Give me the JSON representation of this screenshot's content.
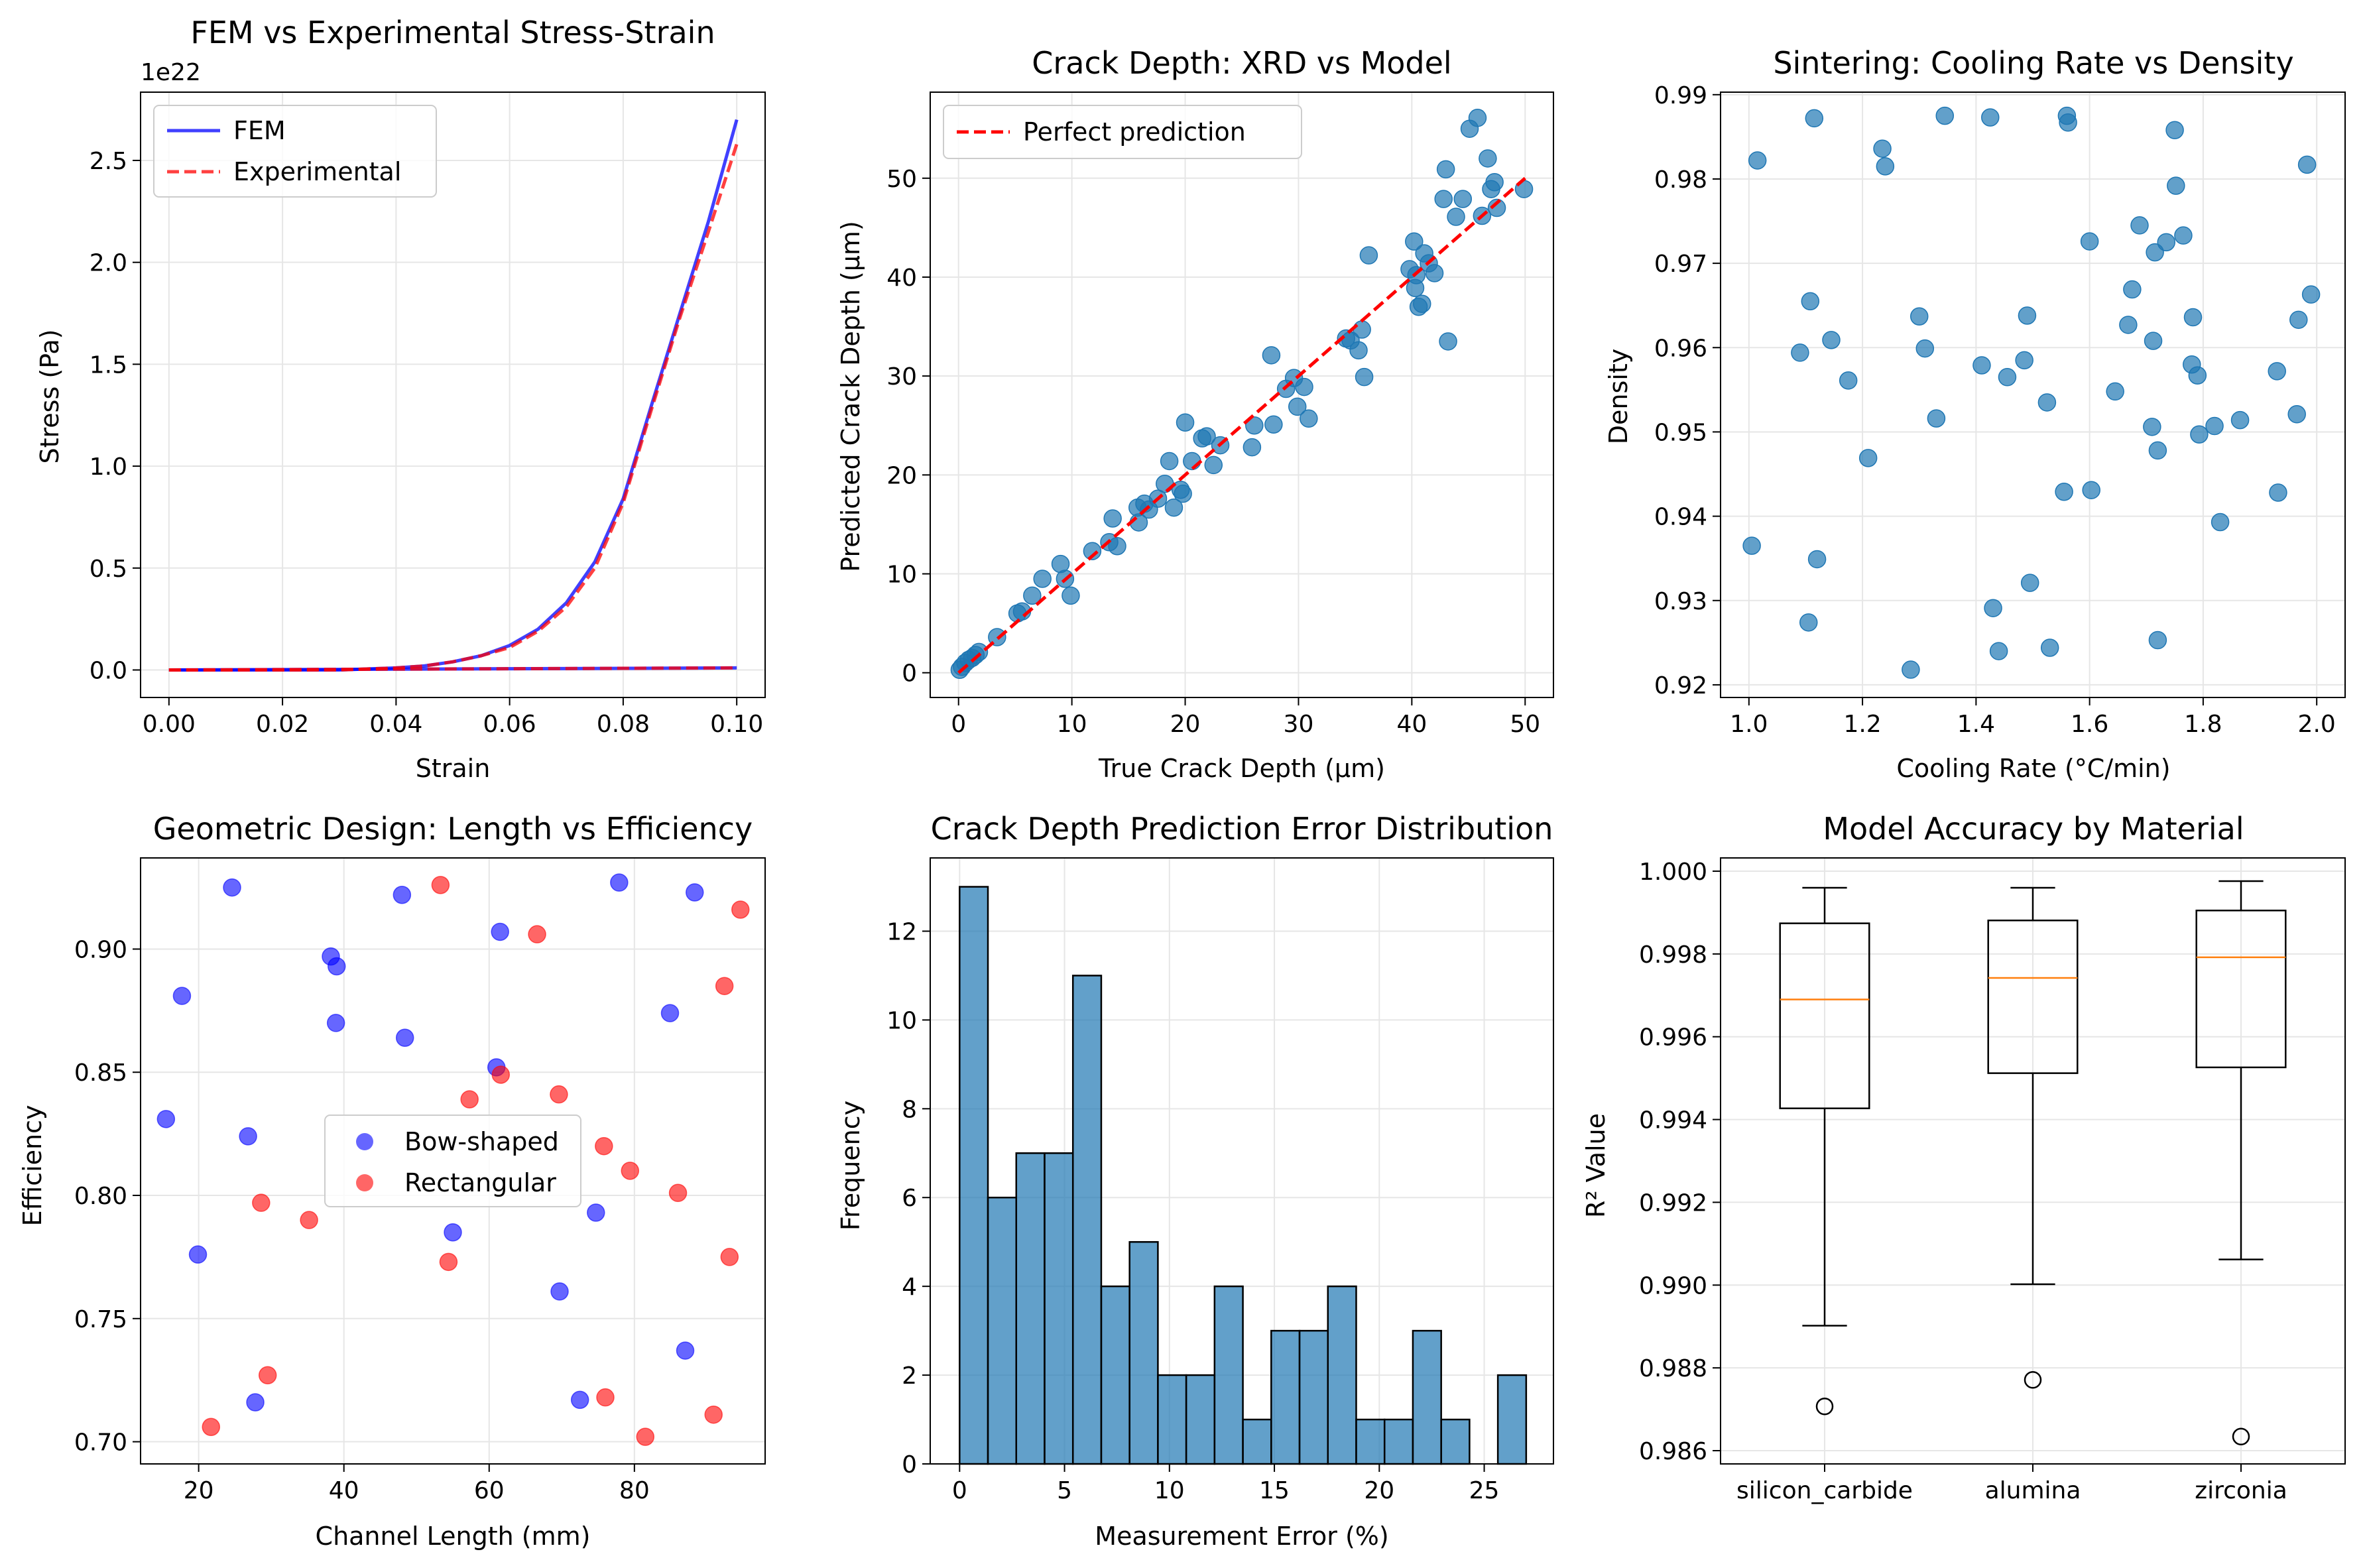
{
  "chart_data": [
    {
      "type": "line",
      "title": "FEM vs Experimental Stress-Strain",
      "xlabel": "Strain",
      "ylabel": "Stress (Pa)",
      "offset_text": "1e22",
      "xlim": [
        -0.005,
        0.105
      ],
      "ylim": [
        -0.135,
        2.835
      ],
      "xticks": [
        0.0,
        0.02,
        0.04,
        0.06,
        0.08,
        0.1
      ],
      "xtick_labels": [
        "0.00",
        "0.02",
        "0.04",
        "0.06",
        "0.08",
        "0.10"
      ],
      "yticks": [
        0.0,
        0.5,
        1.0,
        1.5,
        2.0,
        2.5
      ],
      "ytick_labels": [
        "0.0",
        "0.5",
        "1.0",
        "1.5",
        "2.0",
        "2.5"
      ],
      "grid": true,
      "legend": "upper left",
      "series": [
        {
          "name": "FEM",
          "color": "#0000ff",
          "style": "solid",
          "x": [
            0.0,
            0.01,
            0.02,
            0.03,
            0.04,
            0.045,
            0.05,
            0.055,
            0.06,
            0.065,
            0.07,
            0.075,
            0.08,
            0.085,
            0.09,
            0.095,
            0.1
          ],
          "y": [
            0.0,
            0.0,
            0.0,
            0.0,
            0.01,
            0.02,
            0.04,
            0.07,
            0.12,
            0.2,
            0.33,
            0.53,
            0.84,
            1.3,
            1.75,
            2.2,
            2.7
          ],
          "x2": [
            0.0,
            0.1
          ],
          "y2": [
            0.0,
            0.01
          ]
        },
        {
          "name": "Experimental",
          "color": "#ff0000",
          "style": "dashed",
          "x": [
            0.0,
            0.01,
            0.02,
            0.03,
            0.04,
            0.045,
            0.05,
            0.055,
            0.06,
            0.065,
            0.07,
            0.075,
            0.08,
            0.085,
            0.09,
            0.095,
            0.1
          ],
          "y": [
            0.0,
            0.0,
            0.0,
            0.0,
            0.01,
            0.02,
            0.04,
            0.07,
            0.11,
            0.19,
            0.31,
            0.5,
            0.82,
            1.28,
            1.73,
            2.15,
            2.58
          ],
          "x2": [
            0.0,
            0.1
          ],
          "y2": [
            0.0,
            0.01
          ]
        }
      ]
    },
    {
      "type": "scatter",
      "title": "Crack Depth: XRD vs Model",
      "xlabel": "True Crack Depth (μm)",
      "ylabel": "Predicted Crack Depth (μm)",
      "xlim": [
        -2.5,
        52.5
      ],
      "ylim": [
        -2.5,
        58.7
      ],
      "xticks": [
        0,
        10,
        20,
        30,
        40,
        50
      ],
      "xtick_labels": [
        "0",
        "10",
        "20",
        "30",
        "40",
        "50"
      ],
      "yticks": [
        0,
        10,
        20,
        30,
        40,
        50
      ],
      "ytick_labels": [
        "0",
        "10",
        "20",
        "30",
        "40",
        "50"
      ],
      "grid": true,
      "legend": "upper left",
      "line": {
        "name": "Perfect prediction",
        "color": "#ff0000",
        "style": "dashed",
        "x": [
          0,
          50
        ],
        "y": [
          0,
          50
        ]
      },
      "point_color": "#1f77b4",
      "x": [
        0.1,
        0.3,
        0.6,
        0.9,
        1.2,
        1.5,
        1.8,
        3.4,
        5.2,
        5.6,
        6.5,
        7.4,
        9.0,
        9.4,
        9.9,
        11.8,
        13.3,
        13.6,
        14.0,
        15.8,
        15.9,
        16.4,
        16.8,
        17.6,
        18.2,
        18.6,
        19.0,
        19.6,
        20.0,
        19.8,
        20.6,
        21.5,
        21.9,
        22.5,
        23.1,
        25.9,
        26.1,
        27.6,
        27.8,
        28.9,
        29.6,
        29.9,
        30.5,
        30.9,
        34.2,
        34.6,
        35.3,
        35.6,
        35.8,
        36.2,
        39.8,
        40.2,
        40.3,
        40.4,
        40.6,
        40.9,
        41.1,
        41.5,
        42.0,
        42.8,
        43.0,
        43.2,
        43.9,
        44.5,
        45.1,
        45.8,
        46.2,
        46.7,
        47.0,
        47.3,
        47.5,
        49.9
      ],
      "y": [
        0.3,
        0.6,
        1.0,
        1.3,
        1.5,
        1.8,
        2.1,
        3.6,
        6.0,
        6.2,
        7.8,
        9.5,
        11.0,
        9.5,
        7.8,
        12.3,
        13.2,
        15.6,
        12.8,
        16.7,
        15.2,
        17.1,
        16.5,
        17.6,
        19.1,
        21.4,
        16.7,
        18.5,
        25.3,
        18.1,
        21.4,
        23.7,
        23.9,
        21.0,
        23.0,
        22.8,
        25.0,
        32.1,
        25.1,
        28.7,
        29.8,
        26.9,
        28.9,
        25.7,
        33.8,
        33.6,
        32.6,
        34.7,
        29.9,
        42.2,
        40.8,
        43.6,
        38.9,
        40.2,
        37.0,
        37.3,
        42.4,
        41.4,
        40.4,
        47.9,
        50.9,
        33.5,
        46.1,
        47.9,
        55.0,
        56.1,
        46.2,
        52.0,
        48.9,
        49.6,
        47.0,
        48.9
      ]
    },
    {
      "type": "scatter",
      "title": "Sintering: Cooling Rate vs Density",
      "xlabel": "Cooling Rate (°C/min)",
      "ylabel": "Density",
      "xlim": [
        0.95,
        2.05
      ],
      "ylim": [
        0.9185,
        0.9903
      ],
      "xticks": [
        1.0,
        1.2,
        1.4,
        1.6,
        1.8,
        2.0
      ],
      "xtick_labels": [
        "1.0",
        "1.2",
        "1.4",
        "1.6",
        "1.8",
        "2.0"
      ],
      "yticks": [
        0.92,
        0.93,
        0.94,
        0.95,
        0.96,
        0.97,
        0.98,
        0.99
      ],
      "ytick_labels": [
        "0.92",
        "0.93",
        "0.94",
        "0.95",
        "0.96",
        "0.97",
        "0.98",
        "0.99"
      ],
      "grid": true,
      "point_color": "#1f77b4",
      "x": [
        1.005,
        1.015,
        1.09,
        1.105,
        1.108,
        1.115,
        1.12,
        1.145,
        1.175,
        1.21,
        1.235,
        1.24,
        1.285,
        1.3,
        1.31,
        1.33,
        1.345,
        1.41,
        1.425,
        1.43,
        1.44,
        1.455,
        1.485,
        1.49,
        1.495,
        1.525,
        1.53,
        1.555,
        1.56,
        1.562,
        1.6,
        1.603,
        1.645,
        1.668,
        1.675,
        1.688,
        1.71,
        1.712,
        1.715,
        1.72,
        1.72,
        1.735,
        1.75,
        1.752,
        1.765,
        1.78,
        1.782,
        1.79,
        1.793,
        1.82,
        1.83,
        1.865,
        1.93,
        1.932,
        1.965,
        1.968,
        1.983,
        1.99
      ],
      "y": [
        0.9365,
        0.9822,
        0.9594,
        0.9274,
        0.9655,
        0.9872,
        0.9349,
        0.9609,
        0.9561,
        0.9469,
        0.9836,
        0.9815,
        0.9218,
        0.9637,
        0.9599,
        0.9516,
        0.9875,
        0.9579,
        0.9873,
        0.9291,
        0.924,
        0.9565,
        0.9585,
        0.9638,
        0.9321,
        0.9535,
        0.9244,
        0.9429,
        0.9875,
        0.9867,
        0.9726,
        0.9431,
        0.9548,
        0.9627,
        0.9669,
        0.9745,
        0.9506,
        0.9608,
        0.9713,
        0.9478,
        0.9253,
        0.9725,
        0.9858,
        0.9792,
        0.9733,
        0.958,
        0.9636,
        0.9567,
        0.9497,
        0.9507,
        0.9393,
        0.9514,
        0.9572,
        0.9428,
        0.9521,
        0.9633,
        0.9817,
        0.9663
      ]
    },
    {
      "type": "scatter",
      "title": "Geometric Design: Length vs Efficiency",
      "xlabel": "Channel Length (mm)",
      "ylabel": "Efficiency",
      "xlim": [
        12,
        98
      ],
      "ylim": [
        0.691,
        0.937
      ],
      "xticks": [
        20,
        40,
        60,
        80
      ],
      "xtick_labels": [
        "20",
        "40",
        "60",
        "80"
      ],
      "yticks": [
        0.7,
        0.75,
        0.8,
        0.85,
        0.9
      ],
      "ytick_labels": [
        "0.70",
        "0.75",
        "0.80",
        "0.85",
        "0.90"
      ],
      "grid": true,
      "legend": "center",
      "series": [
        {
          "name": "Bow-shaped",
          "color": "#0000ff",
          "x": [
            15.5,
            17.7,
            19.9,
            24.6,
            26.8,
            27.8,
            38.2,
            39.0,
            38.9,
            48.0,
            48.4,
            55.0,
            61.0,
            61.5,
            69.7,
            72.5,
            74.7,
            77.9,
            84.9,
            87.0,
            88.3
          ],
          "y": [
            0.831,
            0.881,
            0.776,
            0.925,
            0.824,
            0.716,
            0.897,
            0.893,
            0.87,
            0.922,
            0.864,
            0.785,
            0.852,
            0.907,
            0.761,
            0.717,
            0.793,
            0.927,
            0.874,
            0.737,
            0.923
          ]
        },
        {
          "name": "Rectangular",
          "color": "#ff0000",
          "x": [
            21.7,
            28.6,
            29.5,
            35.2,
            53.3,
            54.4,
            57.3,
            61.6,
            66.6,
            69.6,
            75.8,
            76.0,
            79.4,
            81.5,
            86.0,
            90.9,
            92.4,
            93.1,
            94.6
          ],
          "y": [
            0.706,
            0.797,
            0.727,
            0.79,
            0.926,
            0.773,
            0.839,
            0.849,
            0.906,
            0.841,
            0.82,
            0.718,
            0.81,
            0.702,
            0.801,
            0.711,
            0.885,
            0.775,
            0.916
          ]
        }
      ]
    },
    {
      "type": "bar",
      "title": "Crack Depth Prediction Error Distribution",
      "xlabel": "Measurement Error (%)",
      "ylabel": "Frequency",
      "xlim": [
        -1.4,
        28.3
      ],
      "ylim": [
        0,
        13.65
      ],
      "xticks": [
        0,
        5,
        10,
        15,
        20,
        25
      ],
      "xtick_labels": [
        "0",
        "5",
        "10",
        "15",
        "20",
        "25"
      ],
      "yticks": [
        0,
        2,
        4,
        6,
        8,
        10,
        12
      ],
      "ytick_labels": [
        "0",
        "2",
        "4",
        "6",
        "8",
        "10",
        "12"
      ],
      "grid": true,
      "bar_color": "#1f77b4",
      "bin_edges": [
        0.0,
        1.35,
        2.7,
        4.05,
        5.4,
        6.75,
        8.1,
        9.45,
        10.8,
        12.15,
        13.5,
        14.85,
        16.2,
        17.55,
        18.9,
        20.25,
        21.6,
        22.95,
        24.3,
        25.65,
        27.0
      ],
      "values": [
        13,
        6,
        7,
        7,
        11,
        4,
        5,
        2,
        2,
        4,
        1,
        3,
        3,
        4,
        1,
        1,
        3,
        1,
        0,
        2
      ]
    },
    {
      "type": "box",
      "title": "Model Accuracy by Material",
      "xlabel": "",
      "ylabel": "R² Value",
      "ylim": [
        0.98568,
        1.00032
      ],
      "yticks": [
        0.986,
        0.988,
        0.99,
        0.992,
        0.994,
        0.996,
        0.998,
        1.0
      ],
      "ytick_labels": [
        "0.986",
        "0.988",
        "0.990",
        "0.992",
        "0.994",
        "0.996",
        "0.998",
        "1.000"
      ],
      "grid": true,
      "median_color": "#ff7f0e",
      "categories": [
        "silicon_carbide",
        "alumina",
        "zirconia"
      ],
      "boxes": [
        {
          "whisker_low": 0.98902,
          "q1": 0.99427,
          "median": 0.9969,
          "q3": 0.99874,
          "whisker_high": 0.9996,
          "outliers": [
            0.98707
          ]
        },
        {
          "whisker_low": 0.99002,
          "q1": 0.99512,
          "median": 0.99742,
          "q3": 0.99881,
          "whisker_high": 0.9996,
          "outliers": [
            0.98771
          ]
        },
        {
          "whisker_low": 0.99062,
          "q1": 0.99526,
          "median": 0.99792,
          "q3": 0.99905,
          "whisker_high": 0.99976,
          "outliers": [
            0.98634
          ]
        }
      ]
    }
  ]
}
